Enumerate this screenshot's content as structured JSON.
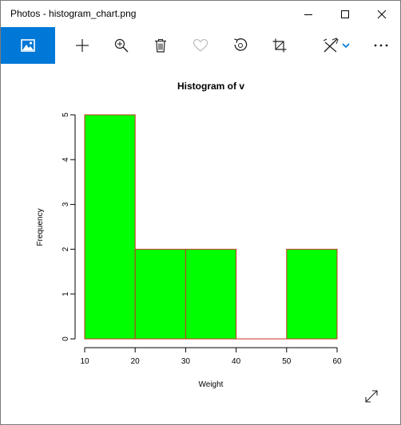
{
  "window": {
    "title": "Photos - histogram_chart.png"
  },
  "toolbar": {
    "items": [
      "add",
      "zoom-in",
      "delete",
      "favorite",
      "rotate",
      "crop",
      "edit-and-create",
      "see-more"
    ]
  },
  "colors": {
    "accent": "#0078d7",
    "bar_fill": "#00ff00",
    "bar_border": "#cc3322"
  },
  "chart_data": {
    "type": "bar",
    "title": "Histogram of v",
    "xlabel": "Weight",
    "ylabel": "Frequency",
    "bins": [
      [
        10,
        20
      ],
      [
        20,
        30
      ],
      [
        30,
        40
      ],
      [
        40,
        50
      ],
      [
        50,
        60
      ]
    ],
    "values": [
      5,
      2,
      2,
      0,
      2
    ],
    "xlim": [
      10,
      60
    ],
    "ylim": [
      0,
      5
    ],
    "xticks": [
      "10",
      "20",
      "30",
      "40",
      "50",
      "60"
    ],
    "yticks": [
      "0",
      "1",
      "2",
      "3",
      "4",
      "5"
    ],
    "grid": false
  }
}
